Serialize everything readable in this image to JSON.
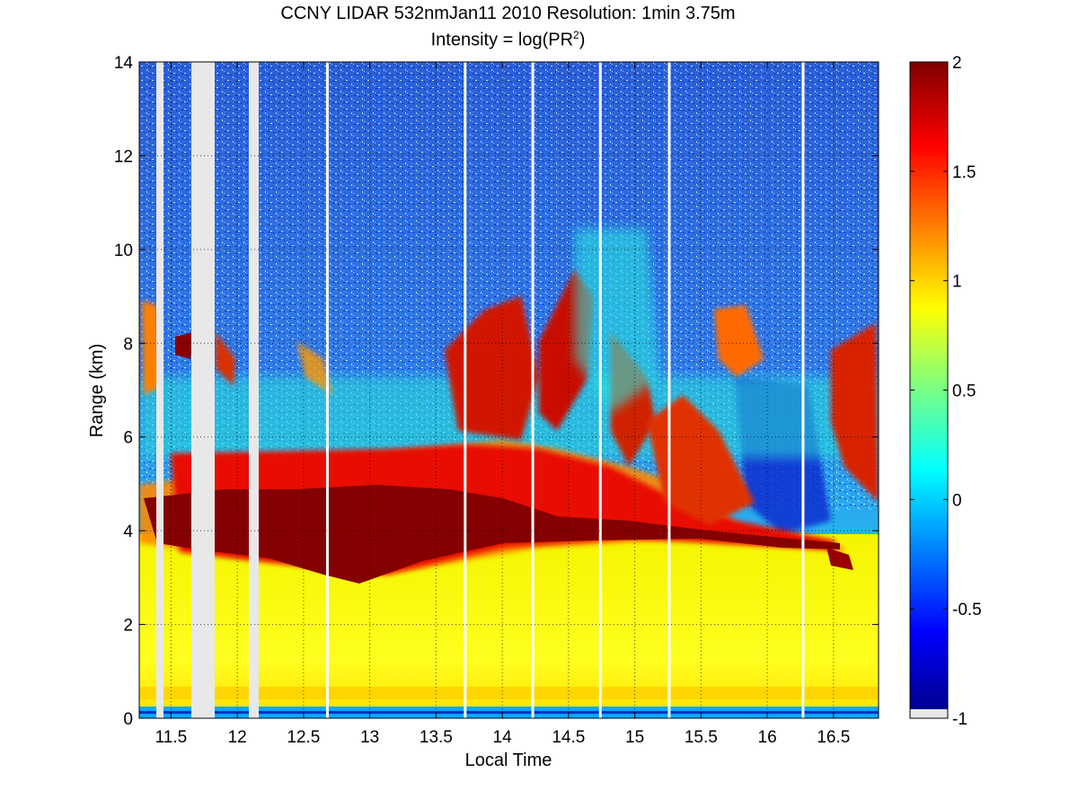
{
  "title": {
    "line1": "CCNY LIDAR 532nmJan11 2010 Resolution: 1min 3.75m",
    "line2_prefix": "Intensity = log(PR",
    "line2_sup": "2",
    "line2_suffix": ")"
  },
  "chart_data": {
    "type": "heatmap",
    "title": "CCNY LIDAR 532nmJan11 2010 Resolution: 1min 3.75m",
    "subtitle": "Intensity = log(PR2)",
    "xlabel": "Local Time",
    "ylabel": "Range (km)",
    "xlim": [
      11.26,
      16.84
    ],
    "ylim": [
      0,
      14
    ],
    "xticks": [
      11.5,
      12,
      12.5,
      13,
      13.5,
      14,
      14.5,
      15,
      15.5,
      16,
      16.5
    ],
    "xtick_labels": [
      "11.5",
      "12",
      "12.5",
      "13",
      "13.5",
      "14",
      "14.5",
      "15",
      "15.5",
      "16",
      "16.5"
    ],
    "yticks": [
      0,
      2,
      4,
      6,
      8,
      10,
      12,
      14
    ],
    "ytick_labels": [
      "0",
      "2",
      "4",
      "6",
      "8",
      "10",
      "12",
      "14"
    ],
    "grid": true,
    "colormap": "jet",
    "colorbar": {
      "range": [
        -1,
        2
      ],
      "ticks": [
        -1,
        -0.5,
        0,
        0.5,
        1,
        1.5,
        2
      ],
      "tick_labels": [
        "-1",
        "-0.5",
        "0",
        "0.5",
        "1",
        "1.5",
        "2"
      ],
      "missing_color": "#e8e8e8"
    },
    "missing_data_intervals": [
      [
        11.39,
        11.44
      ],
      [
        11.66,
        11.84
      ],
      [
        12.1,
        12.17
      ]
    ],
    "white_gap_times": [
      12.68,
      13.72,
      14.23,
      14.74,
      15.26,
      16.27
    ],
    "layers": [
      {
        "feature": "near-surface boundary layer",
        "range_km": [
          0,
          0.15
        ],
        "value": 0.0
      },
      {
        "feature": "aerosol layer",
        "range_km": [
          0.15,
          3.6
        ],
        "value": 0.9
      },
      {
        "feature": "dense cloud band",
        "time": [
          11.3,
          16.6
        ],
        "range_km": [
          3.3,
          5.0
        ],
        "value": 2.0
      },
      {
        "feature": "upper cloud plumes",
        "time": [
          13.4,
          15.8
        ],
        "range_km": [
          5.0,
          9.5
        ],
        "value": 1.6
      },
      {
        "feature": "clear sky noise",
        "range_km": [
          9.5,
          14
        ],
        "value": -0.2
      }
    ]
  }
}
